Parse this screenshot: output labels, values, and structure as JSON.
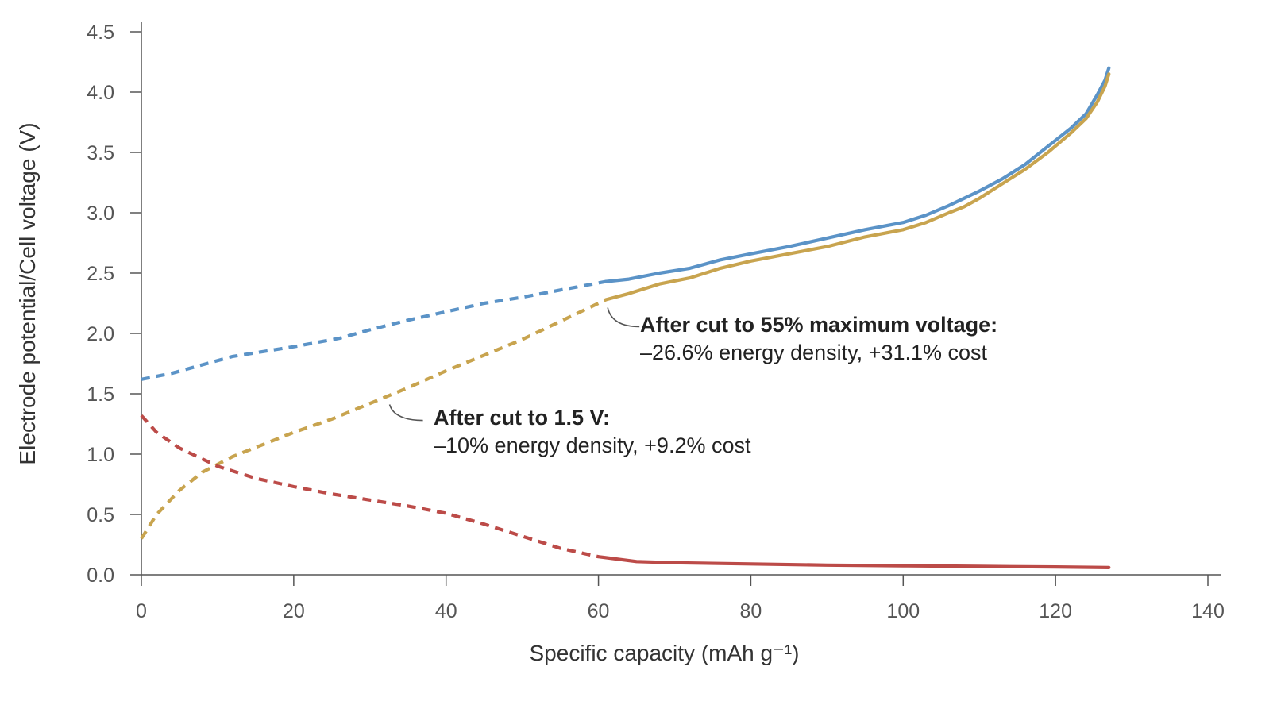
{
  "chart_data": {
    "type": "line",
    "xlabel": "Specific capacity (mAh g⁻¹)",
    "ylabel": "Electrode potential/Cell voltage (V)",
    "xlim": [
      0,
      140
    ],
    "ylim": [
      0,
      4.5
    ],
    "x_ticks": [
      "0",
      "20",
      "40",
      "60",
      "80",
      "100",
      "120",
      "140"
    ],
    "y_ticks": [
      "0.0",
      "0.5",
      "1.0",
      "1.5",
      "2.0",
      "2.5",
      "3.0",
      "3.5",
      "4.0",
      "4.5"
    ],
    "grid": false,
    "series": [
      {
        "color": "#5b93c7",
        "dashed_until_x": 61,
        "points": [
          [
            0,
            1.62
          ],
          [
            4,
            1.67
          ],
          [
            8,
            1.74
          ],
          [
            12,
            1.81
          ],
          [
            16,
            1.85
          ],
          [
            20,
            1.89
          ],
          [
            26,
            1.96
          ],
          [
            30,
            2.03
          ],
          [
            35,
            2.11
          ],
          [
            40,
            2.18
          ],
          [
            45,
            2.25
          ],
          [
            50,
            2.3
          ],
          [
            55,
            2.36
          ],
          [
            61,
            2.43
          ],
          [
            64,
            2.45
          ],
          [
            68,
            2.5
          ],
          [
            72,
            2.54
          ],
          [
            76,
            2.61
          ],
          [
            80,
            2.66
          ],
          [
            85,
            2.72
          ],
          [
            90,
            2.79
          ],
          [
            95,
            2.86
          ],
          [
            100,
            2.92
          ],
          [
            103,
            2.98
          ],
          [
            106,
            3.06
          ],
          [
            108,
            3.12
          ],
          [
            110,
            3.18
          ],
          [
            113,
            3.28
          ],
          [
            116,
            3.4
          ],
          [
            119,
            3.55
          ],
          [
            122,
            3.7
          ],
          [
            124,
            3.82
          ],
          [
            125.5,
            3.98
          ],
          [
            126.5,
            4.1
          ],
          [
            127,
            4.2
          ]
        ]
      },
      {
        "color": "#c8a44f",
        "dashed_until_x": 61,
        "points": [
          [
            0,
            0.3
          ],
          [
            2,
            0.5
          ],
          [
            5,
            0.7
          ],
          [
            8,
            0.85
          ],
          [
            12,
            0.98
          ],
          [
            16,
            1.08
          ],
          [
            20,
            1.18
          ],
          [
            25,
            1.29
          ],
          [
            30,
            1.42
          ],
          [
            35,
            1.55
          ],
          [
            40,
            1.69
          ],
          [
            45,
            1.82
          ],
          [
            50,
            1.95
          ],
          [
            55,
            2.1
          ],
          [
            61,
            2.28
          ],
          [
            64,
            2.33
          ],
          [
            68,
            2.41
          ],
          [
            72,
            2.46
          ],
          [
            76,
            2.54
          ],
          [
            80,
            2.6
          ],
          [
            85,
            2.66
          ],
          [
            90,
            2.72
          ],
          [
            95,
            2.8
          ],
          [
            100,
            2.86
          ],
          [
            103,
            2.92
          ],
          [
            106,
            3.0
          ],
          [
            108,
            3.05
          ],
          [
            110,
            3.12
          ],
          [
            113,
            3.24
          ],
          [
            116,
            3.36
          ],
          [
            119,
            3.5
          ],
          [
            122,
            3.66
          ],
          [
            124,
            3.78
          ],
          [
            125.5,
            3.92
          ],
          [
            126.5,
            4.05
          ],
          [
            127,
            4.15
          ]
        ]
      },
      {
        "color": "#bc4b48",
        "dashed_until_x": 60,
        "points": [
          [
            0,
            1.32
          ],
          [
            2,
            1.18
          ],
          [
            5,
            1.05
          ],
          [
            10,
            0.9
          ],
          [
            15,
            0.8
          ],
          [
            20,
            0.73
          ],
          [
            25,
            0.67
          ],
          [
            30,
            0.62
          ],
          [
            35,
            0.57
          ],
          [
            40,
            0.51
          ],
          [
            45,
            0.42
          ],
          [
            50,
            0.32
          ],
          [
            55,
            0.22
          ],
          [
            60,
            0.15
          ],
          [
            65,
            0.11
          ],
          [
            70,
            0.1
          ],
          [
            80,
            0.09
          ],
          [
            90,
            0.08
          ],
          [
            100,
            0.075
          ],
          [
            110,
            0.07
          ],
          [
            120,
            0.065
          ],
          [
            127,
            0.06
          ]
        ]
      }
    ],
    "annotations": [
      {
        "title": "After cut to 55% maximum voltage:",
        "body": "–26.6% energy density, +31.1% cost",
        "point": [
          61,
          2.28
        ]
      },
      {
        "title": "After cut to 1.5 V:",
        "body": "–10% energy density, +9.2% cost",
        "point": [
          33,
          1.49
        ]
      }
    ]
  }
}
